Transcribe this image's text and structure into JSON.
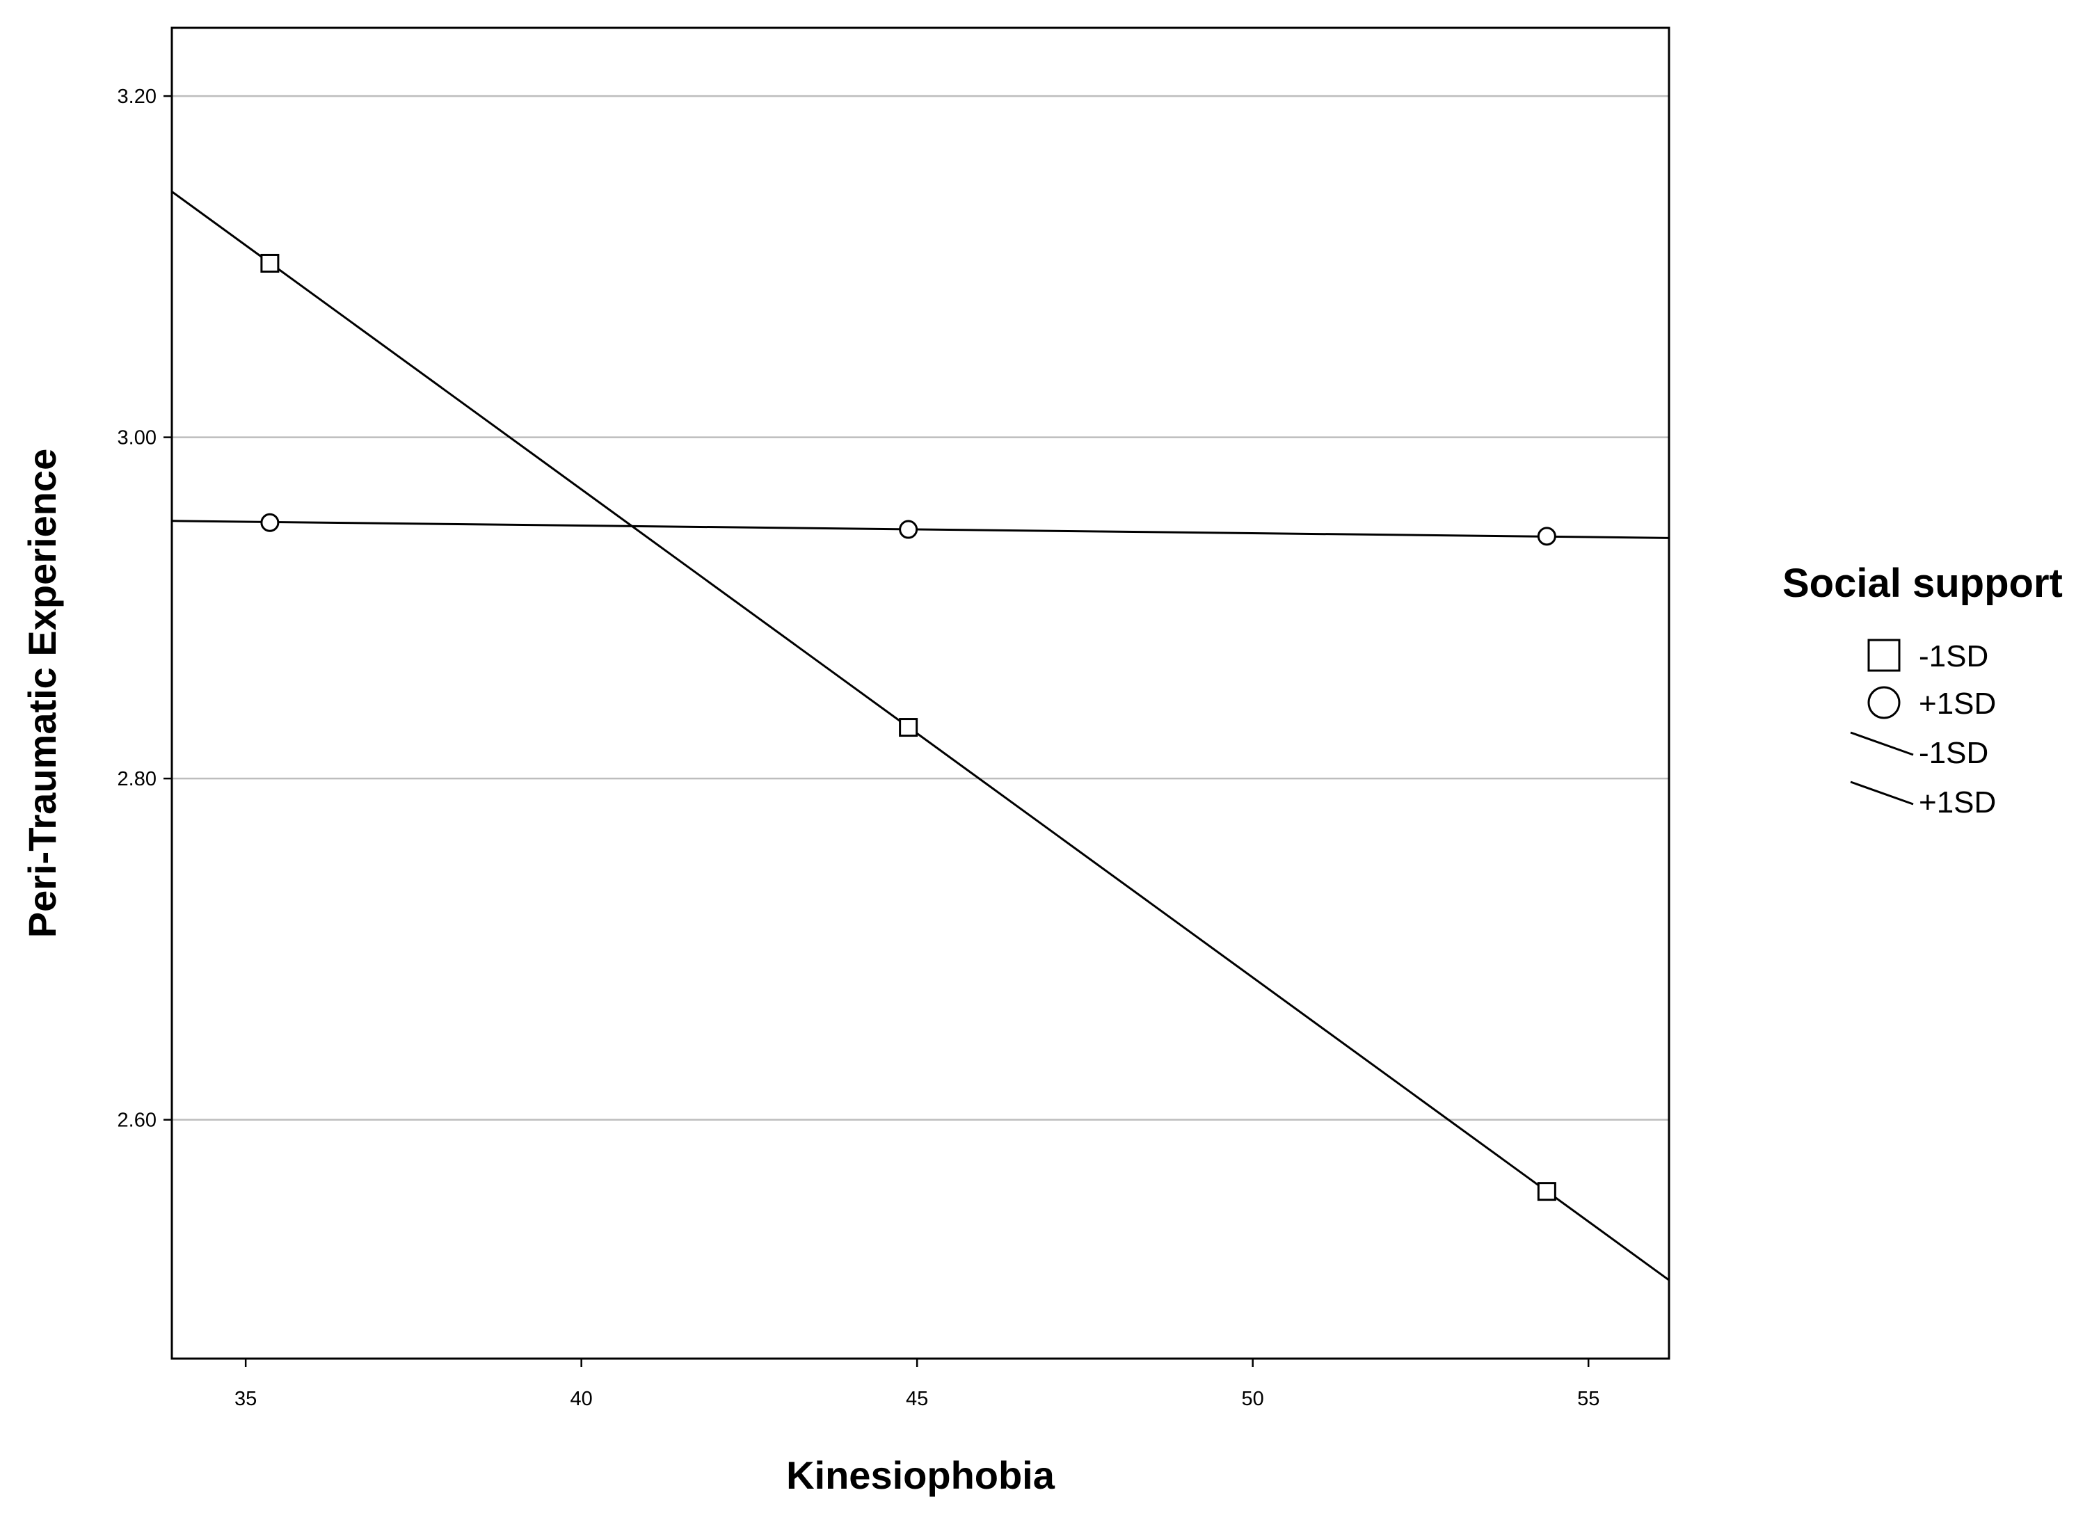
{
  "chart_data": {
    "type": "line",
    "title": "",
    "xlabel": "Kinesiophobia",
    "ylabel": "Peri-Traumatic Experience",
    "xlim": [
      33.9,
      56.2
    ],
    "ylim": [
      2.46,
      3.24
    ],
    "xticks": [
      35,
      40,
      45,
      50,
      55
    ],
    "yticks": [
      2.6,
      2.8,
      3.0,
      3.2
    ],
    "xtick_labels": [
      "35",
      "40",
      "45",
      "50",
      "55"
    ],
    "ytick_labels": [
      "2.60",
      "2.80",
      "3.00",
      "3.20"
    ],
    "grid": "horizontal",
    "legend_title": "Social support",
    "legend_position": "right",
    "series": [
      {
        "name": "-1SD",
        "marker": "square",
        "x": [
          35.36,
          44.87,
          54.38
        ],
        "y": [
          3.102,
          2.83,
          2.558
        ],
        "fit_line": [
          [
            33.9,
            3.144
          ],
          [
            56.2,
            2.506
          ]
        ]
      },
      {
        "name": "+1SD",
        "marker": "circle",
        "x": [
          35.36,
          44.87,
          54.38
        ],
        "y": [
          2.95,
          2.946,
          2.942
        ],
        "fit_line": [
          [
            33.9,
            2.951
          ],
          [
            56.2,
            2.941
          ]
        ]
      }
    ],
    "legend_entries": [
      {
        "label": "-1SD",
        "symbol": "square"
      },
      {
        "label": "+1SD",
        "symbol": "circle"
      },
      {
        "label": "-1SD",
        "symbol": "line"
      },
      {
        "label": "+1SD",
        "symbol": "line"
      }
    ],
    "colors": {
      "line": "#000000",
      "grid": "#bdbdbd",
      "frame": "#000000"
    }
  }
}
